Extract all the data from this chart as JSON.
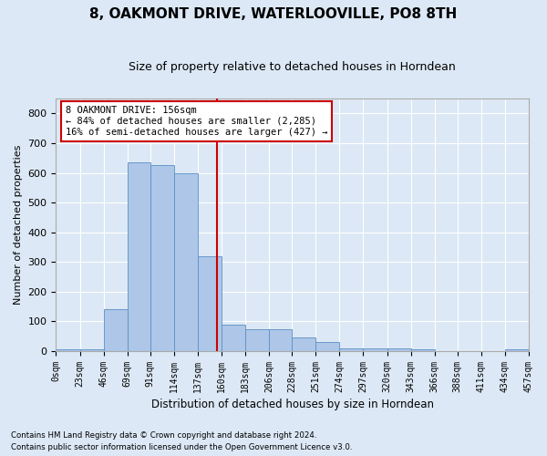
{
  "title": "8, OAKMONT DRIVE, WATERLOOVILLE, PO8 8TH",
  "subtitle": "Size of property relative to detached houses in Horndean",
  "xlabel": "Distribution of detached houses by size in Horndean",
  "ylabel": "Number of detached properties",
  "bar_values": [
    5,
    5,
    140,
    635,
    625,
    600,
    320,
    90,
    75,
    75,
    45,
    30,
    10,
    10,
    10,
    5,
    0,
    0,
    0,
    5
  ],
  "bin_edges": [
    0,
    23,
    46,
    69,
    91,
    114,
    137,
    160,
    183,
    206,
    228,
    251,
    274,
    297,
    320,
    343,
    366,
    388,
    411,
    434,
    457
  ],
  "tick_labels": [
    "0sqm",
    "23sqm",
    "46sqm",
    "69sqm",
    "91sqm",
    "114sqm",
    "137sqm",
    "160sqm",
    "183sqm",
    "206sqm",
    "228sqm",
    "251sqm",
    "274sqm",
    "297sqm",
    "320sqm",
    "343sqm",
    "366sqm",
    "388sqm",
    "411sqm",
    "434sqm",
    "457sqm"
  ],
  "bar_color": "#aec6e8",
  "bar_edgecolor": "#5a8fc4",
  "property_line_x": 156,
  "property_line_color": "#cc0000",
  "ylim": [
    0,
    850
  ],
  "yticks": [
    0,
    100,
    200,
    300,
    400,
    500,
    600,
    700,
    800
  ],
  "annotation_text": "8 OAKMONT DRIVE: 156sqm\n← 84% of detached houses are smaller (2,285)\n16% of semi-detached houses are larger (427) →",
  "annotation_box_color": "#ffffff",
  "annotation_box_edgecolor": "#cc0000",
  "footer_line1": "Contains HM Land Registry data © Crown copyright and database right 2024.",
  "footer_line2": "Contains public sector information licensed under the Open Government Licence v3.0.",
  "bg_color": "#dce8f5",
  "plot_bg_color": "#dce8f5",
  "grid_color": "#ffffff"
}
